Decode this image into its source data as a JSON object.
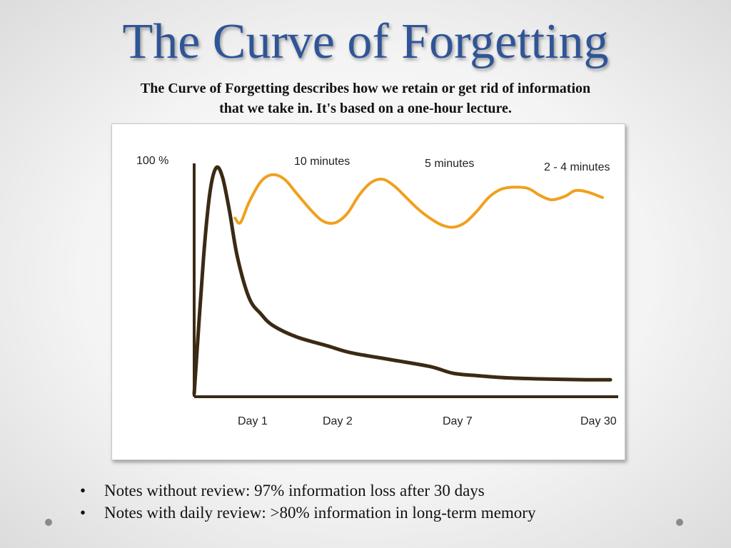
{
  "slide": {
    "title": "The Curve of Forgetting",
    "subtitle_line1": "The Curve of Forgetting describes how we retain or get rid of information",
    "subtitle_line2": "that we take in.  It's based on a one-hour lecture.",
    "bullets": [
      "Notes without review: 97% information loss after 30 days",
      "Notes with daily review: >80% information in long-term memory"
    ],
    "bullet_symbol": "•"
  },
  "chart_data": {
    "type": "line",
    "title": "",
    "xlabel": "",
    "ylabel": "",
    "y_label_top": "100 %",
    "x_tick_labels": [
      "Day 1",
      "Day 2",
      "Day 7",
      "Day 30"
    ],
    "annotations": [
      "10 minutes",
      "5 minutes",
      "2 - 4 minutes"
    ],
    "ylim": [
      0,
      100
    ],
    "grid": false,
    "legend": "none",
    "series": [
      {
        "color": "#3b2a14",
        "points": [
          [
            0,
            0
          ],
          [
            0.12,
            60
          ],
          [
            0.2,
            88
          ],
          [
            0.28,
            99
          ],
          [
            0.36,
            95
          ],
          [
            0.45,
            80
          ],
          [
            0.55,
            60
          ],
          [
            0.7,
            42
          ],
          [
            0.85,
            35
          ],
          [
            1.0,
            30
          ],
          [
            1.3,
            25
          ],
          [
            1.7,
            21
          ],
          [
            2.0,
            18
          ],
          [
            2.5,
            15
          ],
          [
            3.0,
            12
          ],
          [
            3.3,
            9
          ],
          [
            3.6,
            8
          ],
          [
            4.0,
            7
          ],
          [
            4.5,
            6.5
          ],
          [
            5.0,
            6.2
          ],
          [
            5.3,
            6.2
          ]
        ]
      },
      {
        "color": "#f0a01e",
        "points": [
          [
            0.52,
            77
          ],
          [
            0.59,
            75
          ],
          [
            0.7,
            84
          ],
          [
            0.85,
            93
          ],
          [
            1.0,
            96
          ],
          [
            1.15,
            94
          ],
          [
            1.3,
            88
          ],
          [
            1.5,
            80
          ],
          [
            1.65,
            75.5
          ],
          [
            1.8,
            75
          ],
          [
            1.95,
            79
          ],
          [
            2.1,
            87
          ],
          [
            2.25,
            92.5
          ],
          [
            2.4,
            94
          ],
          [
            2.55,
            91
          ],
          [
            2.7,
            86
          ],
          [
            2.85,
            81
          ],
          [
            3.0,
            77
          ],
          [
            3.15,
            74
          ],
          [
            3.3,
            73
          ],
          [
            3.45,
            75
          ],
          [
            3.6,
            80
          ],
          [
            3.75,
            86
          ],
          [
            3.9,
            89.5
          ],
          [
            4.05,
            90.5
          ],
          [
            4.25,
            90
          ],
          [
            4.4,
            87
          ],
          [
            4.55,
            85
          ],
          [
            4.72,
            86.5
          ],
          [
            4.85,
            89
          ],
          [
            5.0,
            88.5
          ],
          [
            5.2,
            86
          ]
        ]
      }
    ]
  }
}
